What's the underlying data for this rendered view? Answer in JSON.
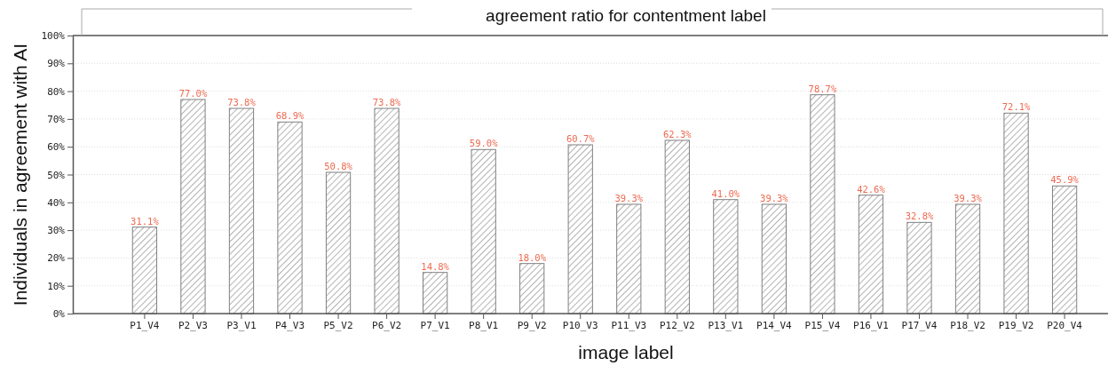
{
  "chart_data": {
    "type": "bar",
    "title": "agreement ratio for contentment label",
    "xlabel": "image label",
    "ylabel": "Individuals in agreement with AI",
    "categories": [
      "P1_V4",
      "P2_V3",
      "P3_V1",
      "P4_V3",
      "P5_V2",
      "P6_V2",
      "P7_V1",
      "P8_V1",
      "P9_V2",
      "P10_V3",
      "P11_V3",
      "P12_V2",
      "P13_V1",
      "P14_V4",
      "P15_V4",
      "P16_V1",
      "P17_V4",
      "P18_V2",
      "P19_V2",
      "P20_V4"
    ],
    "values": [
      31.1,
      77.0,
      73.8,
      68.9,
      50.8,
      73.8,
      14.8,
      59.0,
      18.0,
      60.7,
      39.3,
      62.3,
      41.0,
      39.3,
      78.7,
      42.6,
      32.8,
      39.3,
      72.1,
      45.9
    ],
    "value_labels": [
      "31.1%",
      "77.0%",
      "73.8%",
      "68.9%",
      "50.8%",
      "73.8%",
      "14.8%",
      "59.0%",
      "18.0%",
      "60.7%",
      "39.3%",
      "62.3%",
      "41.0%",
      "39.3%",
      "78.7%",
      "42.6%",
      "32.8%",
      "39.3%",
      "72.1%",
      "45.9%"
    ],
    "color": "#808080",
    "ylim": [
      0,
      100
    ],
    "yticks": [
      {
        "value": 0,
        "label": "0%"
      },
      {
        "value": 10,
        "label": "10%"
      },
      {
        "value": 20,
        "label": "20%"
      },
      {
        "value": 30,
        "label": "30%"
      },
      {
        "value": 40,
        "label": "40%"
      },
      {
        "value": 50,
        "label": "50%"
      },
      {
        "value": 60,
        "label": "60%"
      },
      {
        "value": 70,
        "label": "70%"
      },
      {
        "value": 80,
        "label": "80%"
      },
      {
        "value": 90,
        "label": "90%"
      },
      {
        "value": 100,
        "label": "100%"
      }
    ],
    "grid": "y"
  }
}
